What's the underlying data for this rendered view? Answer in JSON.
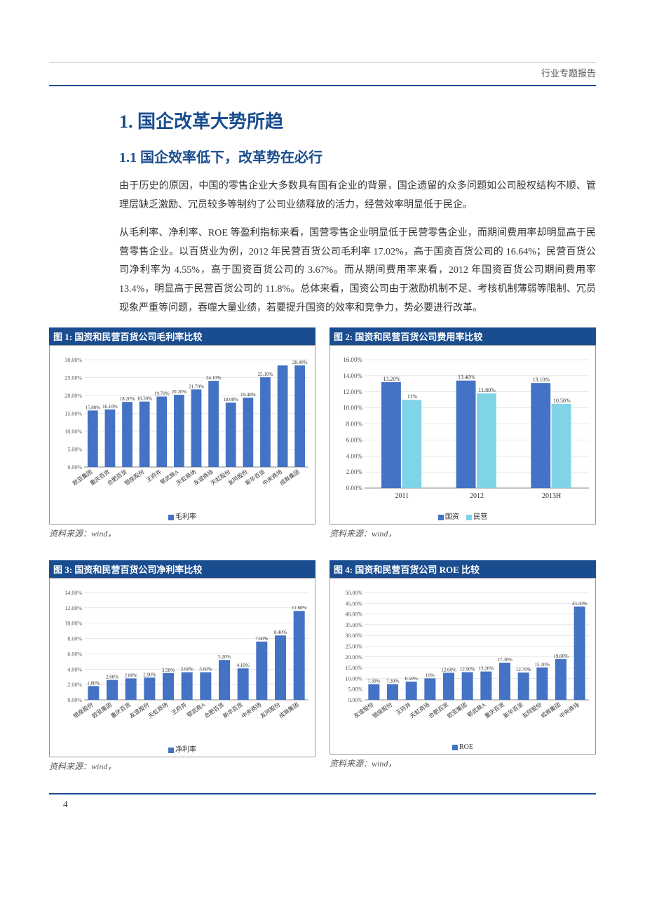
{
  "header": {
    "label": "行业专题报告"
  },
  "section": {
    "h1": "1.  国企改革大势所趋",
    "h2": "1.1  国企效率低下，改革势在必行",
    "para1": "由于历史的原因，中国的零售企业大多数具有国有企业的背景，国企遗留的众多问题如公司股权结构不顺、管理层缺乏激励、冗员较多等制约了公司业绩释放的活力，经营效率明显低于民企。",
    "para2": "从毛利率、净利率、ROE 等盈利指标来看，国营零售企业明显低于民营零售企业，而期间费用率却明显高于民营零售企业。以百货业为例，2012 年民营百货公司毛利率 17.02%，高于国资百货公司的 16.64%；民营百货公司净利率为 4.55%，高于国资百货公司的 3.67%。而从期间费用率来看，2012 年国资百货公司期间费用率 13.4%，明显高于民营百货公司的 11.8%。总体来看，国资公司由于激励机制不足、考核机制薄弱等限制、冗员现象严重等问题，吞噬大量业绩，若要提升国资的效率和竞争力，势必要进行改革。"
  },
  "chart1": {
    "title": "图 1:  国资和民营百货公司毛利率比较",
    "type": "bar",
    "categories": [
      "欧亚集团",
      "重庆百货",
      "合肥百货",
      "银座股份",
      "王府井",
      "鄂武商A",
      "天虹商场",
      "友谊商场",
      "天虹股份",
      "友阿股份",
      "新华百货",
      "中央商场",
      "成商集团"
    ],
    "values": [
      15.8,
      16.1,
      18.2,
      18.3,
      19.7,
      20.2,
      21.7,
      24.1,
      18.0,
      19.4,
      25.1,
      28.4,
      28.4
    ],
    "value_labels": [
      "15.80%",
      "16.10%",
      "18.20%",
      "18.30%",
      "19.70%",
      "20.20%",
      "21.70%",
      "24.10%",
      "18.00%",
      "19.40%",
      "25.10%",
      "",
      "28.40%"
    ],
    "bar_color": "#4472c4",
    "ylim": [
      0,
      30
    ],
    "ytick_step": 5,
    "ytick_suffix": ".00%",
    "legend": "毛利率",
    "background": "#ffffff",
    "grid_color": "#d0d0d0",
    "label_fontsize": 8
  },
  "chart2": {
    "title": "图 2:  国资和民营百货公司费用率比较",
    "type": "grouped-bar",
    "categories": [
      "2011",
      "2012",
      "2013H"
    ],
    "series": [
      {
        "name": "国资",
        "color": "#4472c4",
        "values": [
          13.2,
          13.4,
          13.1
        ],
        "labels": [
          "13.20%",
          "13.40%",
          "13.10%"
        ]
      },
      {
        "name": "民营",
        "color": "#7fd4e8",
        "values": [
          11.0,
          11.8,
          10.5
        ],
        "labels": [
          "11%",
          "11.80%",
          "10.50%"
        ]
      }
    ],
    "ylim": [
      0,
      16
    ],
    "ytick_step": 2,
    "ytick_suffix": ".00%",
    "background": "#ffffff",
    "grid_color": "#d0d0d0",
    "label_fontsize": 9
  },
  "chart3": {
    "title": "图 3:  国资和民营百货公司净利率比较",
    "type": "bar",
    "categories": [
      "银座股份",
      "欧亚集团",
      "重庆百货",
      "友谊股份",
      "天虹商场",
      "王府井",
      "鄂武商A",
      "合肥百货",
      "新华百货",
      "中央商场",
      "友阿股份",
      "成商集团"
    ],
    "values": [
      1.8,
      2.6,
      2.8,
      2.9,
      3.5,
      3.6,
      3.6,
      5.2,
      4.1,
      7.6,
      8.4,
      11.6
    ],
    "value_labels": [
      "1.80%",
      "2.60%",
      "2.80%",
      "2.90%",
      "3.50%",
      "3.60%",
      "3.60%",
      "5.20%",
      "4.10%",
      "7.60%",
      "8.40%",
      "11.60%"
    ],
    "bar_color": "#4472c4",
    "ylim": [
      0,
      14
    ],
    "ytick_step": 2,
    "ytick_suffix": ".00%",
    "legend": "净利率",
    "background": "#ffffff",
    "grid_color": "#d0d0d0",
    "label_fontsize": 8
  },
  "chart4": {
    "title": "图 4:  国资和民营百货公司 ROE 比较",
    "type": "bar",
    "categories": [
      "友谊股份",
      "银座股份",
      "王府井",
      "天虹商场",
      "合肥百货",
      "欧亚集团",
      "鄂武商A",
      "重庆百货",
      "新华百货",
      "友阿股份",
      "成商集团",
      "中央商场"
    ],
    "values": [
      7.3,
      7.3,
      8.5,
      10.0,
      12.6,
      12.9,
      13.2,
      17.3,
      12.7,
      15.1,
      19.0,
      43.5
    ],
    "value_labels": [
      "7.30%",
      "7.30%",
      "8.50%",
      "10%",
      "12.60%",
      "12.90%",
      "13.20%",
      "17.30%",
      "12.70%",
      "15.10%",
      "19.00%",
      "43.50%"
    ],
    "bar_color": "#4472c4",
    "ylim": [
      0,
      50
    ],
    "ytick_step": 5,
    "ytick_suffix": ".00%",
    "legend": "ROE",
    "background": "#ffffff",
    "grid_color": "#d0d0d0",
    "label_fontsize": 8
  },
  "source_label": "资料来源：wind，",
  "page_number": "4"
}
